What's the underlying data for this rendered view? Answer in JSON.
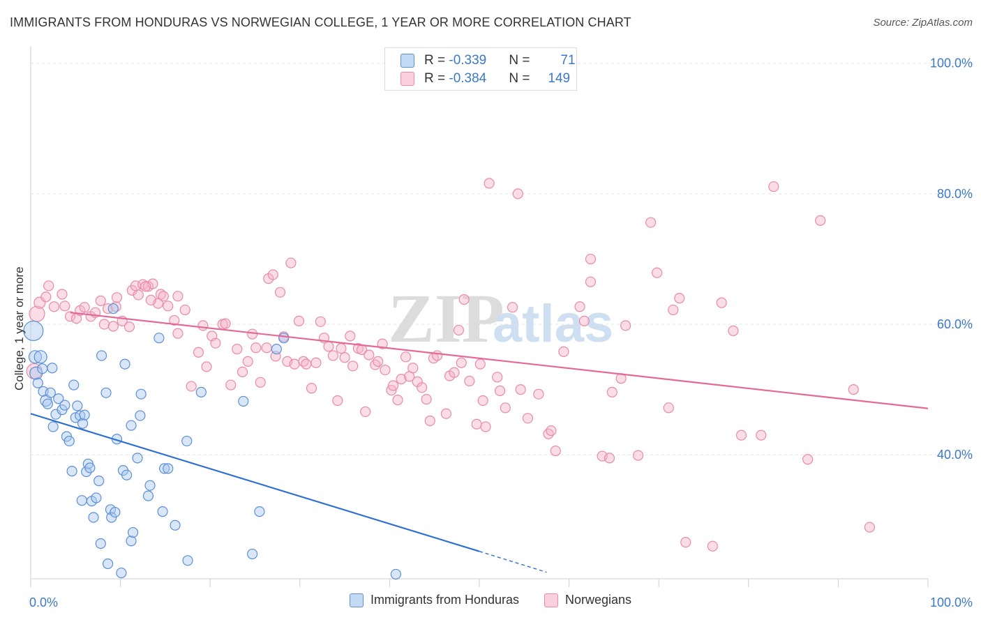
{
  "title": "IMMIGRANTS FROM HONDURAS VS NORWEGIAN COLLEGE, 1 YEAR OR MORE CORRELATION CHART",
  "source": "Source: ZipAtlas.com",
  "watermark": {
    "zip": "ZIP",
    "atlas": "atlas"
  },
  "colors": {
    "blue_fill": "#a9c8f0",
    "blue_stroke": "#5b8fd6",
    "blue_line": "#2f6fd0",
    "pink_fill": "#f6b3c8",
    "pink_stroke": "#e88aa8",
    "pink_line": "#e36a96",
    "axis_text": "#3b78c8"
  },
  "stats": {
    "row1": {
      "r_label": "R = ",
      "r_value": "-0.339",
      "n_label": "N = ",
      "n_value": "71"
    },
    "row2": {
      "r_label": "R = ",
      "r_value": "-0.384",
      "n_label": "N = ",
      "n_value": "149"
    }
  },
  "legend": {
    "series1": "Immigrants from Honduras",
    "series2": "Norwegians"
  },
  "chart_data": {
    "type": "scatter",
    "ylabel": "College, 1 year or more",
    "x_tick_labels": {
      "left": "0.0%",
      "right": "100.0%"
    },
    "y_tick_labels": [
      "100.0%",
      "80.0%",
      "60.0%",
      "40.0%"
    ],
    "xlim": [
      0,
      100
    ],
    "ylim": [
      21,
      102
    ],
    "grid": true,
    "legend_position": "bottom",
    "series": [
      {
        "name": "Immigrants from Honduras",
        "trendline": {
          "x": [
            0,
            50
          ],
          "y": [
            46.3,
            25.2
          ],
          "dashed_to": [
            57.5,
            22.0
          ]
        },
        "points": [
          [
            0.3,
            59.0,
            14
          ],
          [
            0.5,
            55.0,
            9
          ],
          [
            0.6,
            52.5,
            9
          ],
          [
            0.8,
            51.0,
            7
          ],
          [
            1.1,
            55.0,
            9
          ],
          [
            1.3,
            53.2,
            7
          ],
          [
            1.4,
            49.7,
            7
          ],
          [
            1.7,
            48.3,
            8
          ],
          [
            1.9,
            47.8,
            7
          ],
          [
            2.2,
            49.5,
            7
          ],
          [
            2.4,
            53.3,
            7
          ],
          [
            2.5,
            44.3,
            7
          ],
          [
            2.8,
            46.2,
            7
          ],
          [
            3.1,
            48.6,
            7
          ],
          [
            3.5,
            46.9,
            7
          ],
          [
            3.8,
            47.6,
            7
          ],
          [
            4.0,
            42.8,
            7
          ],
          [
            4.3,
            42.1,
            7
          ],
          [
            4.6,
            37.5,
            7
          ],
          [
            4.8,
            50.7,
            7
          ],
          [
            5.0,
            45.7,
            7
          ],
          [
            5.2,
            47.5,
            7
          ],
          [
            5.5,
            46.0,
            7
          ],
          [
            5.8,
            44.8,
            7
          ],
          [
            6.0,
            46.1,
            7
          ],
          [
            6.2,
            37.4,
            7
          ],
          [
            6.4,
            38.6,
            7
          ],
          [
            6.6,
            38.0,
            7
          ],
          [
            5.7,
            33.0,
            7
          ],
          [
            6.8,
            32.9,
            7
          ],
          [
            7.0,
            30.4,
            7
          ],
          [
            7.3,
            33.4,
            7
          ],
          [
            7.6,
            36.0,
            7
          ],
          [
            7.8,
            26.4,
            7
          ],
          [
            7.9,
            55.2,
            7
          ],
          [
            8.4,
            49.5,
            7
          ],
          [
            8.6,
            23.3,
            7
          ],
          [
            8.9,
            31.6,
            7
          ],
          [
            9.0,
            30.4,
            7
          ],
          [
            9.2,
            62.4,
            7
          ],
          [
            9.4,
            31.2,
            7
          ],
          [
            9.6,
            42.4,
            7
          ],
          [
            10.1,
            21.9,
            7
          ],
          [
            10.3,
            37.6,
            7
          ],
          [
            10.5,
            53.9,
            7
          ],
          [
            10.7,
            36.9,
            7
          ],
          [
            11.2,
            26.8,
            7
          ],
          [
            11.4,
            28.1,
            7
          ],
          [
            11.2,
            44.5,
            7
          ],
          [
            11.9,
            39.5,
            7
          ],
          [
            12.2,
            46.0,
            7
          ],
          [
            12.3,
            49.3,
            7
          ],
          [
            13.1,
            33.7,
            7
          ],
          [
            13.3,
            35.3,
            7
          ],
          [
            14.3,
            57.9,
            7
          ],
          [
            14.7,
            31.3,
            7
          ],
          [
            14.9,
            37.9,
            7
          ],
          [
            15.3,
            37.9,
            7
          ],
          [
            16.1,
            29.2,
            7
          ],
          [
            17.4,
            42.1,
            7
          ],
          [
            17.5,
            23.8,
            7
          ],
          [
            19.0,
            49.6,
            7
          ],
          [
            23.7,
            48.2,
            7
          ],
          [
            24.7,
            24.8,
            7
          ],
          [
            25.5,
            31.3,
            7
          ],
          [
            27.4,
            56.2,
            7
          ],
          [
            28.2,
            57.9,
            7
          ],
          [
            40.7,
            21.7,
            7
          ]
        ]
      },
      {
        "name": "Norwegians",
        "trendline": {
          "x": [
            4.4,
            100
          ],
          "y": [
            61.8,
            47.1
          ]
        },
        "points": [
          [
            0.7,
            61.6,
            11
          ],
          [
            0.4,
            52.8,
            11
          ],
          [
            1.0,
            63.3,
            8
          ],
          [
            1.7,
            64.2,
            7
          ],
          [
            2.0,
            65.9,
            7
          ],
          [
            2.6,
            62.7,
            7
          ],
          [
            3.5,
            64.6,
            7
          ],
          [
            3.8,
            62.8,
            7
          ],
          [
            4.4,
            61.2,
            7
          ],
          [
            5.1,
            60.9,
            7
          ],
          [
            5.5,
            62.1,
            7
          ],
          [
            6.0,
            62.6,
            7
          ],
          [
            6.7,
            61.2,
            7
          ],
          [
            7.2,
            61.8,
            7
          ],
          [
            7.8,
            63.6,
            7
          ],
          [
            8.2,
            60.0,
            7
          ],
          [
            8.6,
            62.4,
            7
          ],
          [
            9.2,
            59.7,
            7
          ],
          [
            9.5,
            62.7,
            7
          ],
          [
            9.6,
            64.1,
            7
          ],
          [
            10.2,
            60.5,
            7
          ],
          [
            11.0,
            59.6,
            7
          ],
          [
            11.3,
            65.2,
            7
          ],
          [
            11.7,
            65.9,
            7
          ],
          [
            12.0,
            64.5,
            7
          ],
          [
            12.5,
            66.1,
            7
          ],
          [
            13.1,
            65.8,
            7
          ],
          [
            13.6,
            66.2,
            7
          ],
          [
            14.2,
            63.2,
            7
          ],
          [
            14.5,
            64.6,
            7
          ],
          [
            14.8,
            64.3,
            7
          ],
          [
            15.3,
            62.8,
            7
          ],
          [
            16.0,
            60.6,
            7
          ],
          [
            16.4,
            58.6,
            7
          ],
          [
            17.2,
            62.2,
            7
          ],
          [
            17.9,
            50.5,
            7
          ],
          [
            18.7,
            55.7,
            7
          ],
          [
            19.2,
            59.8,
            7
          ],
          [
            19.6,
            53.5,
            7
          ],
          [
            20.2,
            58.2,
            7
          ],
          [
            20.6,
            57.1,
            7
          ],
          [
            21.4,
            60.0,
            7
          ],
          [
            21.7,
            60.1,
            7
          ],
          [
            22.3,
            50.7,
            7
          ],
          [
            23.0,
            56.2,
            7
          ],
          [
            23.6,
            52.7,
            7
          ],
          [
            24.2,
            54.3,
            7
          ],
          [
            24.7,
            58.5,
            7
          ],
          [
            25.1,
            56.4,
            7
          ],
          [
            25.6,
            51.1,
            7
          ],
          [
            26.3,
            56.4,
            7
          ],
          [
            26.5,
            67.0,
            7
          ],
          [
            27.0,
            67.6,
            7
          ],
          [
            27.3,
            55.1,
            7
          ],
          [
            27.8,
            64.9,
            7
          ],
          [
            28.2,
            58.1,
            7
          ],
          [
            28.6,
            54.3,
            7
          ],
          [
            29.0,
            69.4,
            7
          ],
          [
            29.4,
            53.9,
            7
          ],
          [
            29.9,
            60.5,
            7
          ],
          [
            30.4,
            54.3,
            7
          ],
          [
            30.7,
            53.9,
            7
          ],
          [
            31.3,
            50.2,
            7
          ],
          [
            31.8,
            54.1,
            7
          ],
          [
            32.3,
            60.4,
            7
          ],
          [
            32.7,
            57.9,
            7
          ],
          [
            33.2,
            56.6,
            7
          ],
          [
            33.7,
            55.2,
            7
          ],
          [
            34.2,
            48.3,
            7
          ],
          [
            34.6,
            56.3,
            7
          ],
          [
            35.0,
            54.9,
            7
          ],
          [
            35.6,
            58.2,
            7
          ],
          [
            35.9,
            53.6,
            7
          ],
          [
            36.5,
            56.3,
            7
          ],
          [
            36.9,
            56.1,
            7
          ],
          [
            37.3,
            46.6,
            7
          ],
          [
            37.7,
            55.3,
            7
          ],
          [
            38.4,
            53.8,
            7
          ],
          [
            38.7,
            54.3,
            7
          ],
          [
            39.2,
            57.0,
            7
          ],
          [
            39.5,
            53.0,
            7
          ],
          [
            40.2,
            49.9,
            7
          ],
          [
            40.4,
            50.6,
            7
          ],
          [
            40.9,
            48.4,
            7
          ],
          [
            41.3,
            51.6,
            7
          ],
          [
            41.8,
            55.0,
            7
          ],
          [
            42.2,
            52.0,
            7
          ],
          [
            42.6,
            53.3,
            7
          ],
          [
            43.1,
            51.2,
            7
          ],
          [
            43.6,
            50.3,
            7
          ],
          [
            44.1,
            48.5,
            7
          ],
          [
            44.5,
            45.2,
            7
          ],
          [
            44.9,
            54.8,
            7
          ],
          [
            45.3,
            55.2,
            7
          ],
          [
            46.3,
            46.3,
            7
          ],
          [
            46.7,
            52.1,
            7
          ],
          [
            47.2,
            52.6,
            7
          ],
          [
            47.7,
            59.1,
            7
          ],
          [
            48.0,
            54.1,
            7
          ],
          [
            48.3,
            63.8,
            7
          ],
          [
            48.9,
            51.3,
            7
          ],
          [
            49.7,
            44.7,
            7
          ],
          [
            50.1,
            53.9,
            7
          ],
          [
            50.4,
            48.3,
            7
          ],
          [
            50.7,
            44.3,
            7
          ],
          [
            51.1,
            81.6,
            7
          ],
          [
            52.0,
            51.9,
            7
          ],
          [
            52.3,
            49.8,
            7
          ],
          [
            52.9,
            47.2,
            7
          ],
          [
            54.3,
            80.0,
            7
          ],
          [
            53.7,
            62.6,
            7
          ],
          [
            54.6,
            50.0,
            7
          ],
          [
            55.4,
            45.6,
            7
          ],
          [
            56.6,
            49.3,
            7
          ],
          [
            57.7,
            43.2,
            7
          ],
          [
            58.0,
            43.7,
            7
          ],
          [
            58.5,
            40.6,
            7
          ],
          [
            59.4,
            55.8,
            7
          ],
          [
            61.7,
            60.5,
            7
          ],
          [
            61.2,
            62.7,
            7
          ],
          [
            62.4,
            70.0,
            7
          ],
          [
            62.4,
            66.5,
            7
          ],
          [
            63.7,
            39.8,
            7
          ],
          [
            64.5,
            39.5,
            7
          ],
          [
            64.8,
            49.6,
            7
          ],
          [
            65.8,
            51.7,
            7
          ],
          [
            66.3,
            59.8,
            7
          ],
          [
            67.7,
            39.9,
            7
          ],
          [
            69.1,
            75.6,
            7
          ],
          [
            69.8,
            67.9,
            7
          ],
          [
            71.6,
            62.2,
            7
          ],
          [
            71.1,
            47.2,
            7
          ],
          [
            72.3,
            64.0,
            7
          ],
          [
            73.0,
            26.6,
            7
          ],
          [
            76.0,
            26.0,
            7
          ],
          [
            77.0,
            63.3,
            7
          ],
          [
            78.3,
            59.0,
            7
          ],
          [
            79.2,
            43.0,
            7
          ],
          [
            81.4,
            43.0,
            7
          ],
          [
            82.8,
            81.1,
            7
          ],
          [
            86.6,
            39.3,
            7
          ],
          [
            88.0,
            75.9,
            7
          ],
          [
            91.7,
            50.0,
            7
          ],
          [
            93.5,
            28.9,
            7
          ],
          [
            16.4,
            64.3,
            7
          ],
          [
            12.8,
            65.8,
            7
          ],
          [
            13.4,
            63.7,
            7
          ]
        ]
      }
    ]
  }
}
